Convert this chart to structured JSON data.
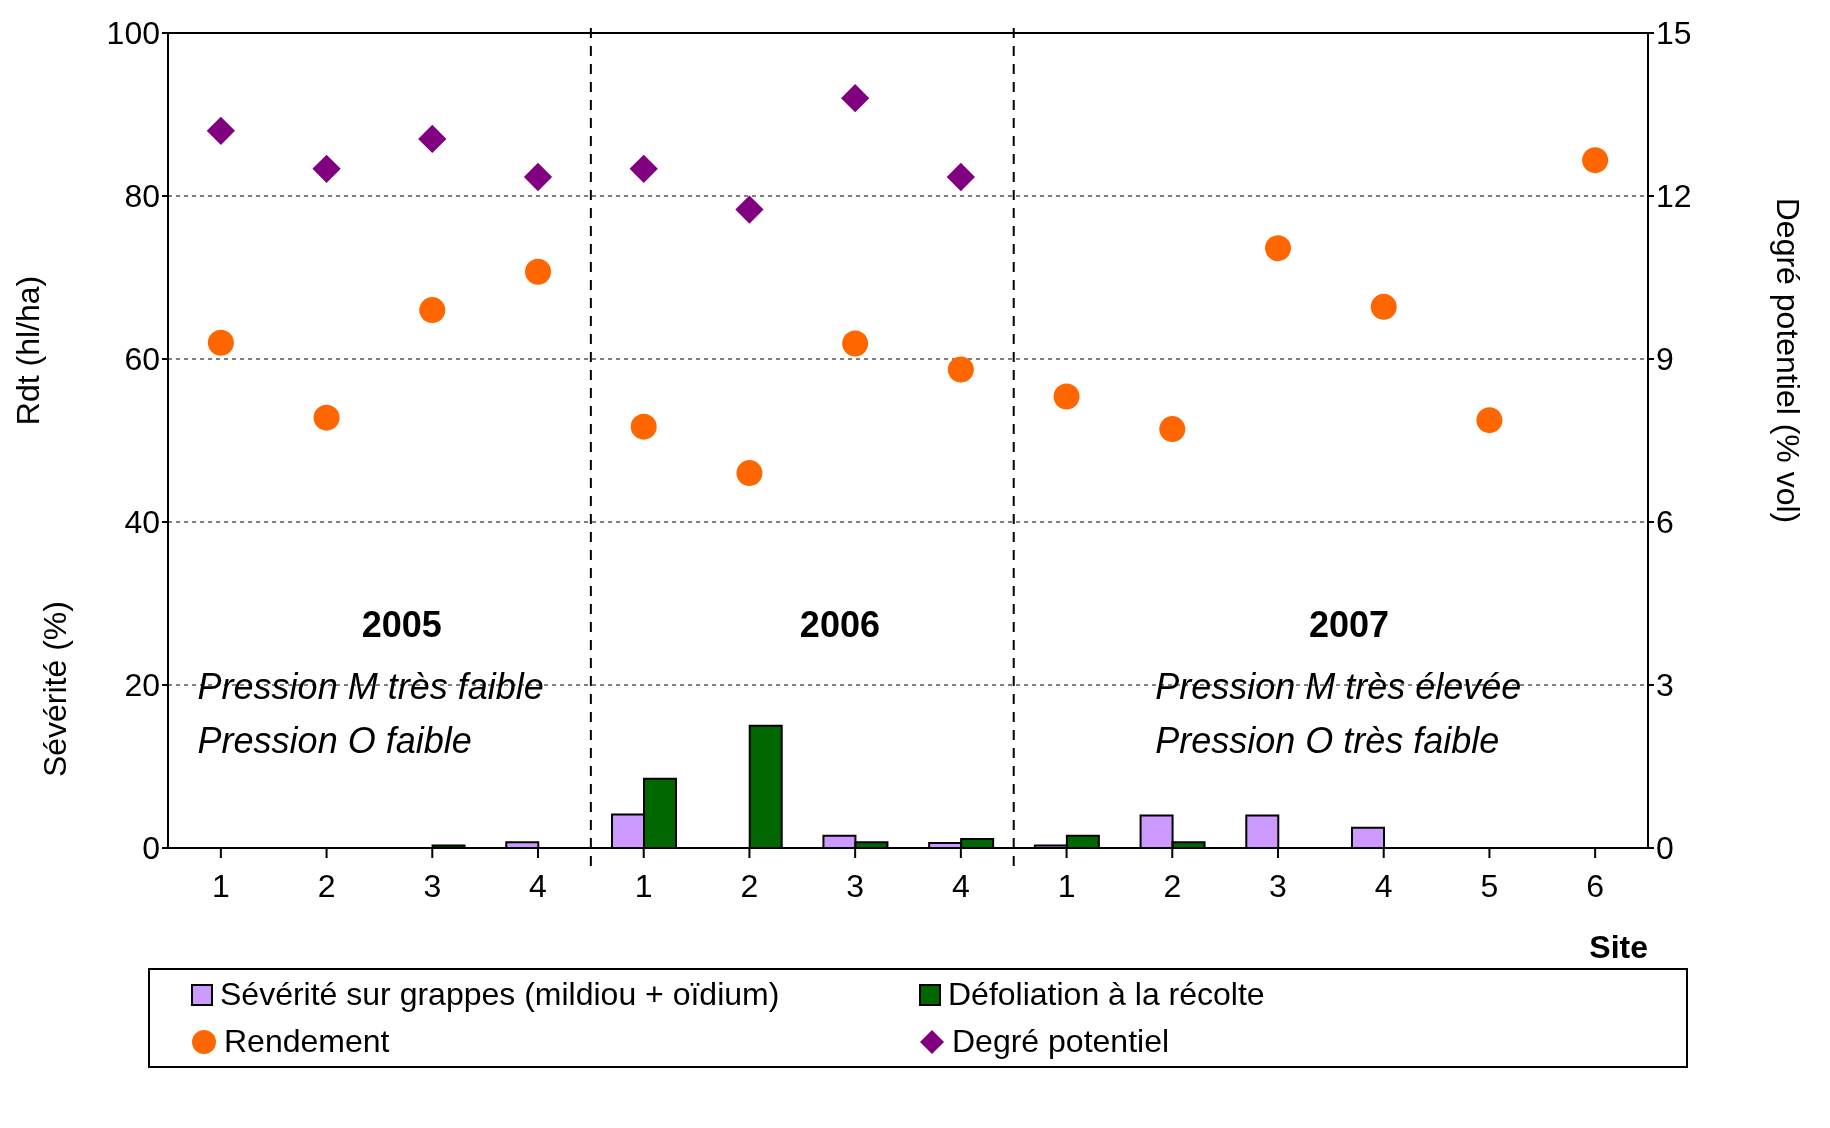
{
  "chart_data": {
    "type": "bar",
    "xlabel": "Site",
    "ylabel": "Rdt (hl/ha)",
    "y2label": "Degré potentiel (% vol)",
    "categories": [
      "1",
      "2",
      "3",
      "4",
      "1",
      "2",
      "3",
      "4",
      "1",
      "2",
      "3",
      "4",
      "5",
      "6"
    ],
    "series": [
      {
        "name": "Sévérité sur grappes (mildiou + oïdium)",
        "type": "bar",
        "color": "#cc99ff",
        "values": [
          0,
          0,
          0,
          0.7,
          4.1,
          0,
          1.5,
          0.6,
          0.3,
          4.0,
          4.0,
          2.5,
          0,
          0
        ]
      },
      {
        "name": "Défoliation à la récolte",
        "type": "bar",
        "color": "#006600",
        "values": [
          0,
          0,
          0.3,
          0,
          8.5,
          15.0,
          0.7,
          1.1,
          1.5,
          0.7,
          0,
          0,
          0,
          0
        ]
      },
      {
        "name": "Rendement",
        "type": "scatter",
        "marker": "circle",
        "color": "#ff6600",
        "values": [
          62.0,
          52.8,
          66.0,
          70.7,
          51.7,
          46.0,
          61.9,
          58.7,
          55.4,
          51.4,
          73.6,
          66.4,
          52.5,
          84.4
        ]
      },
      {
        "name": "Degré potentiel",
        "type": "scatter",
        "marker": "diamond",
        "axis": "y2",
        "color": "#800080",
        "values": [
          13.2,
          12.5,
          13.05,
          12.35,
          12.5,
          11.75,
          13.8,
          12.35,
          null,
          null,
          null,
          null,
          null,
          null
        ]
      }
    ],
    "ylim": [
      0,
      100
    ],
    "yticks": [
      0,
      20,
      40,
      60,
      80,
      100
    ],
    "y2lim": [
      0,
      15
    ],
    "y2ticks": [
      0,
      3,
      6,
      9,
      12,
      15
    ],
    "grid": "y",
    "legend": "bottom",
    "annotations": [
      "Sévérité (%)",
      "2005",
      "Pression M très faible",
      "Pression O faible",
      "2006",
      "2007",
      "Pression M très élevée",
      "Pression O très faible"
    ]
  }
}
